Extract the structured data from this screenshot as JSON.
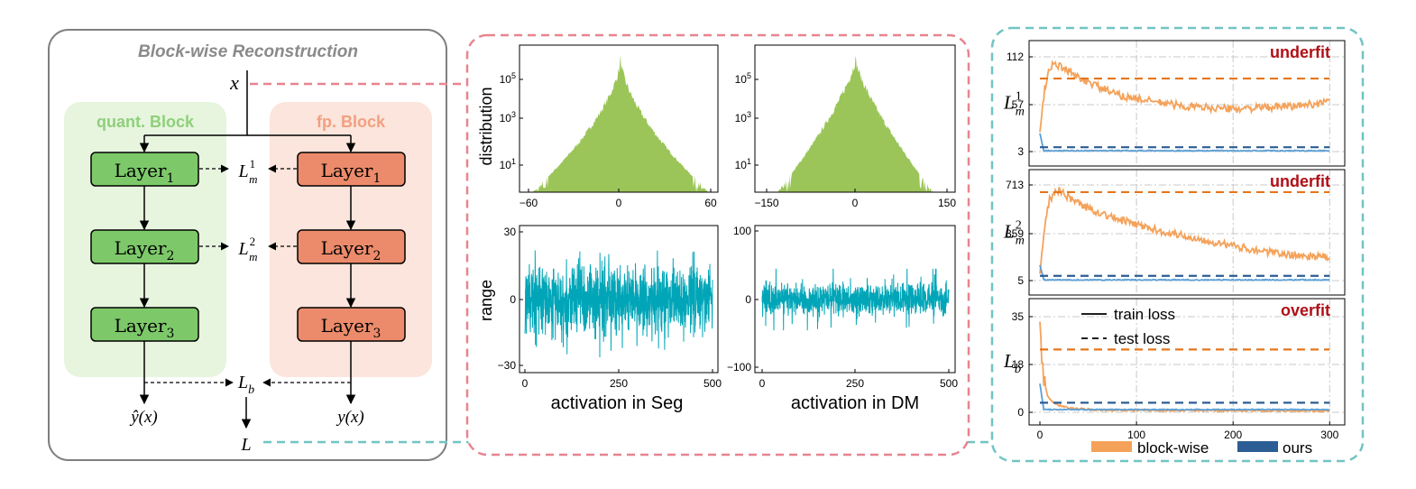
{
  "block_diagram": {
    "title": "Block-wise Reconstruction",
    "input": "x",
    "quant_block_label": "quant. Block",
    "fp_block_label": "fp. Block",
    "layer_base": "Layer",
    "layer_subscripts": [
      "1",
      "2",
      "3"
    ],
    "loss_m_base": "L",
    "loss_m_sub": "m",
    "loss_m_sups": [
      "1",
      "2"
    ],
    "loss_b_base": "L",
    "loss_b_sub": "b",
    "quant_output": "ŷ(x)",
    "fp_output": "y(x)",
    "final_loss": "L"
  },
  "activation_panel": {
    "dist_ylabel": "distribution",
    "range_ylabel": "range",
    "seg_xlabel": "activation in Seg",
    "dm_xlabel": "activation in DM",
    "dist_yticks": [
      {
        "base": "10",
        "exp": "5"
      },
      {
        "base": "10",
        "exp": "3"
      },
      {
        "base": "10",
        "exp": "1"
      }
    ],
    "seg_dist_xticks": [
      "−60",
      "0",
      "60"
    ],
    "dm_dist_xticks": [
      "−150",
      "0",
      "150"
    ],
    "seg_range_yticks": [
      "30",
      "0",
      "−30"
    ],
    "dm_range_yticks": [
      "100",
      "0",
      "−100"
    ],
    "range_xticks": [
      "0",
      "250",
      "500"
    ],
    "colors": {
      "dist": "#9bc558",
      "range": "#00a6b8"
    }
  },
  "chart_data": {
    "type": "line",
    "x_range": [
      0,
      310
    ],
    "xticks": [
      "0",
      "100",
      "200",
      "300"
    ],
    "legend_series": [
      "block-wise",
      "ours"
    ],
    "legend_styles": [
      "train loss",
      "test loss"
    ],
    "colors": {
      "block_wise": "#f4a25a",
      "block_wise_dashed": "#e5761b",
      "ours": "#5a9fd6",
      "ours_dashed": "#2c5d94",
      "status": "#b01017"
    },
    "subplots": [
      {
        "status": "underfit",
        "ylabel_base": "L",
        "ylabel_sub": "m",
        "ylabel_sup": "1",
        "yticks": [
          "112",
          "57",
          "3"
        ],
        "ylim": [
          -2,
          117
        ],
        "block_wise_test": 87,
        "ours_test": 8,
        "ours_train_final": 4,
        "block_wise_train_keypoints": [
          [
            0,
            25
          ],
          [
            5,
            75
          ],
          [
            10,
            100
          ],
          [
            15,
            104
          ],
          [
            25,
            98
          ],
          [
            40,
            88
          ],
          [
            60,
            78
          ],
          [
            80,
            68
          ],
          [
            110,
            62
          ],
          [
            150,
            55
          ],
          [
            200,
            52
          ],
          [
            260,
            55
          ],
          [
            300,
            60
          ]
        ]
      },
      {
        "status": "underfit",
        "ylabel_base": "L",
        "ylabel_sub": "m",
        "ylabel_sup": "2",
        "yticks": [
          "713",
          "359",
          "5"
        ],
        "ylim": [
          -30,
          750
        ],
        "block_wise_test": 660,
        "ours_test": 40,
        "ours_train_final": 10,
        "block_wise_train_keypoints": [
          [
            0,
            60
          ],
          [
            5,
            420
          ],
          [
            10,
            600
          ],
          [
            20,
            680
          ],
          [
            30,
            620
          ],
          [
            50,
            540
          ],
          [
            80,
            460
          ],
          [
            120,
            380
          ],
          [
            160,
            320
          ],
          [
            200,
            260
          ],
          [
            250,
            200
          ],
          [
            300,
            175
          ]
        ]
      },
      {
        "status": "overfit",
        "ylabel_base": "L",
        "ylabel_sub": "b",
        "yticks": [
          "35",
          "18",
          "0"
        ],
        "ylim": [
          -2,
          37
        ],
        "block_wise_test": 23,
        "ours_test": 3.5,
        "ours_train_final": 1.0,
        "block_wise_train_keypoints": [
          [
            0,
            36
          ],
          [
            2,
            20
          ],
          [
            4,
            12
          ],
          [
            8,
            6
          ],
          [
            15,
            3
          ],
          [
            30,
            1.5
          ],
          [
            60,
            0.8
          ],
          [
            300,
            0.5
          ]
        ]
      }
    ]
  }
}
